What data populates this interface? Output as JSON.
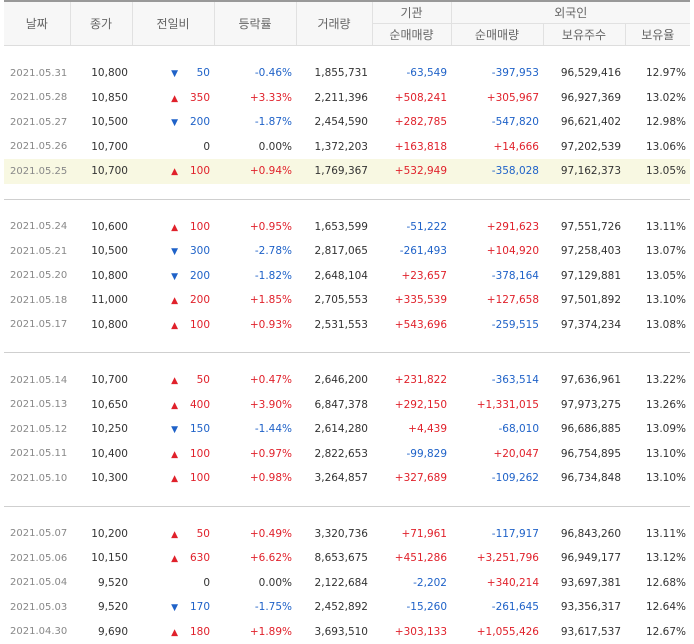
{
  "header": {
    "date": "날짜",
    "close": "종가",
    "change": "전일비",
    "rate": "등락률",
    "volume": "거래량",
    "institution": "기관",
    "foreign": "외국인",
    "inst_net": "순매매량",
    "foreign_net": "순매매량",
    "shares": "보유주수",
    "ratio": "보유율"
  },
  "groups": [
    [
      {
        "date": "2021.05.31",
        "close": "10,800",
        "dir": "dn",
        "change": "50",
        "rate": "-0.46%",
        "volume": "1,855,731",
        "inst": "-63,549",
        "foreign": "-397,953",
        "shares": "96,529,416",
        "ratio": "12.97%",
        "highlight": false
      },
      {
        "date": "2021.05.28",
        "close": "10,850",
        "dir": "up",
        "change": "350",
        "rate": "+3.33%",
        "volume": "2,211,396",
        "inst": "+508,241",
        "foreign": "+305,967",
        "shares": "96,927,369",
        "ratio": "13.02%",
        "highlight": false
      },
      {
        "date": "2021.05.27",
        "close": "10,500",
        "dir": "dn",
        "change": "200",
        "rate": "-1.87%",
        "volume": "2,454,590",
        "inst": "+282,785",
        "foreign": "-547,820",
        "shares": "96,621,402",
        "ratio": "12.98%",
        "highlight": false
      },
      {
        "date": "2021.05.26",
        "close": "10,700",
        "dir": "flat",
        "change": "0",
        "rate": "0.00%",
        "volume": "1,372,203",
        "inst": "+163,818",
        "foreign": "+14,666",
        "shares": "97,202,539",
        "ratio": "13.06%",
        "highlight": false
      },
      {
        "date": "2021.05.25",
        "close": "10,700",
        "dir": "up",
        "change": "100",
        "rate": "+0.94%",
        "volume": "1,769,367",
        "inst": "+532,949",
        "foreign": "-358,028",
        "shares": "97,162,373",
        "ratio": "13.05%",
        "highlight": true
      }
    ],
    [
      {
        "date": "2021.05.24",
        "close": "10,600",
        "dir": "up",
        "change": "100",
        "rate": "+0.95%",
        "volume": "1,653,599",
        "inst": "-51,222",
        "foreign": "+291,623",
        "shares": "97,551,726",
        "ratio": "13.11%",
        "highlight": false
      },
      {
        "date": "2021.05.21",
        "close": "10,500",
        "dir": "dn",
        "change": "300",
        "rate": "-2.78%",
        "volume": "2,817,065",
        "inst": "-261,493",
        "foreign": "+104,920",
        "shares": "97,258,403",
        "ratio": "13.07%",
        "highlight": false
      },
      {
        "date": "2021.05.20",
        "close": "10,800",
        "dir": "dn",
        "change": "200",
        "rate": "-1.82%",
        "volume": "2,648,104",
        "inst": "+23,657",
        "foreign": "-378,164",
        "shares": "97,129,881",
        "ratio": "13.05%",
        "highlight": false
      },
      {
        "date": "2021.05.18",
        "close": "11,000",
        "dir": "up",
        "change": "200",
        "rate": "+1.85%",
        "volume": "2,705,553",
        "inst": "+335,539",
        "foreign": "+127,658",
        "shares": "97,501,892",
        "ratio": "13.10%",
        "highlight": false
      },
      {
        "date": "2021.05.17",
        "close": "10,800",
        "dir": "up",
        "change": "100",
        "rate": "+0.93%",
        "volume": "2,531,553",
        "inst": "+543,696",
        "foreign": "-259,515",
        "shares": "97,374,234",
        "ratio": "13.08%",
        "highlight": false
      }
    ],
    [
      {
        "date": "2021.05.14",
        "close": "10,700",
        "dir": "up",
        "change": "50",
        "rate": "+0.47%",
        "volume": "2,646,200",
        "inst": "+231,822",
        "foreign": "-363,514",
        "shares": "97,636,961",
        "ratio": "13.22%",
        "highlight": false
      },
      {
        "date": "2021.05.13",
        "close": "10,650",
        "dir": "up",
        "change": "400",
        "rate": "+3.90%",
        "volume": "6,847,378",
        "inst": "+292,150",
        "foreign": "+1,331,015",
        "shares": "97,973,275",
        "ratio": "13.26%",
        "highlight": false
      },
      {
        "date": "2021.05.12",
        "close": "10,250",
        "dir": "dn",
        "change": "150",
        "rate": "-1.44%",
        "volume": "2,614,280",
        "inst": "+4,439",
        "foreign": "-68,010",
        "shares": "96,686,885",
        "ratio": "13.09%",
        "highlight": false
      },
      {
        "date": "2021.05.11",
        "close": "10,400",
        "dir": "up",
        "change": "100",
        "rate": "+0.97%",
        "volume": "2,822,653",
        "inst": "-99,829",
        "foreign": "+20,047",
        "shares": "96,754,895",
        "ratio": "13.10%",
        "highlight": false
      },
      {
        "date": "2021.05.10",
        "close": "10,300",
        "dir": "up",
        "change": "100",
        "rate": "+0.98%",
        "volume": "3,264,857",
        "inst": "+327,689",
        "foreign": "-109,262",
        "shares": "96,734,848",
        "ratio": "13.10%",
        "highlight": false
      }
    ],
    [
      {
        "date": "2021.05.07",
        "close": "10,200",
        "dir": "up",
        "change": "50",
        "rate": "+0.49%",
        "volume": "3,320,736",
        "inst": "+71,961",
        "foreign": "-117,917",
        "shares": "96,843,260",
        "ratio": "13.11%",
        "highlight": false
      },
      {
        "date": "2021.05.06",
        "close": "10,150",
        "dir": "up",
        "change": "630",
        "rate": "+6.62%",
        "volume": "8,653,675",
        "inst": "+451,286",
        "foreign": "+3,251,796",
        "shares": "96,949,177",
        "ratio": "13.12%",
        "highlight": false
      },
      {
        "date": "2021.05.04",
        "close": "9,520",
        "dir": "flat",
        "change": "0",
        "rate": "0.00%",
        "volume": "2,122,684",
        "inst": "-2,202",
        "foreign": "+340,214",
        "shares": "93,697,381",
        "ratio": "12.68%",
        "highlight": false
      },
      {
        "date": "2021.05.03",
        "close": "9,520",
        "dir": "dn",
        "change": "170",
        "rate": "-1.75%",
        "volume": "2,452,892",
        "inst": "-15,260",
        "foreign": "-261,645",
        "shares": "93,356,317",
        "ratio": "12.64%",
        "highlight": false
      },
      {
        "date": "2021.04.30",
        "close": "9,690",
        "dir": "up",
        "change": "180",
        "rate": "+1.89%",
        "volume": "3,693,510",
        "inst": "+303,133",
        "foreign": "+1,055,426",
        "shares": "93,617,537",
        "ratio": "12.67%",
        "highlight": false
      }
    ]
  ],
  "icons": {
    "up": "triangle-up-icon",
    "dn": "triangle-down-icon"
  },
  "colors": {
    "up": "#e0212b",
    "down": "#1f62c8"
  }
}
